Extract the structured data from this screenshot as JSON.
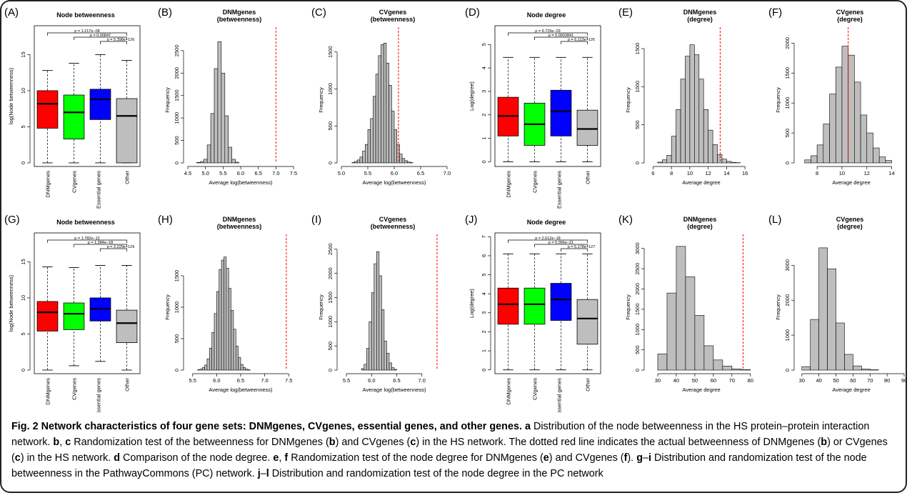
{
  "chart_data": [
    {
      "panel": "(A)",
      "type": "box",
      "title": "Node betweenness",
      "ylabel": "log(Node betweenness)",
      "categories": [
        "DNMgenes",
        "CVgenes",
        "Essential genes",
        "Other"
      ],
      "colors": [
        "#ff0000",
        "#00ff00",
        "#0000ff",
        "#bebebe"
      ],
      "boxes": [
        {
          "q1": 4.8,
          "median": 8.2,
          "q3": 10.0,
          "lo": 0,
          "hi": 12.8
        },
        {
          "q1": 3.3,
          "median": 7.0,
          "q3": 9.4,
          "lo": 0,
          "hi": 13.8
        },
        {
          "q1": 6.0,
          "median": 8.8,
          "q3": 10.2,
          "lo": 0,
          "hi": 15.0
        },
        {
          "q1": 0,
          "median": 6.5,
          "q3": 8.9,
          "lo": 0,
          "hi": 14.2
        }
      ],
      "yticks": [
        0,
        5,
        10,
        15
      ],
      "ylim": [
        -0.5,
        19
      ],
      "pvalues": [
        "p = 1.217e−08",
        "p = 0.00847",
        "p = 5.398e−126"
      ]
    },
    {
      "panel": "(B)",
      "type": "histogram",
      "title": "DNMgenes\n(betweenness)",
      "xlabel": "Average log(betweenness)",
      "ylabel": "Frequency",
      "xlim": [
        4.5,
        7.5
      ],
      "xticks": [
        4.5,
        5.0,
        5.5,
        6.0,
        6.5,
        7.0,
        7.5
      ],
      "ylim": [
        0,
        2800
      ],
      "yticks": [
        0,
        500,
        1000,
        1500,
        2000,
        2500
      ],
      "bin_start": 4.75,
      "bin_width": 0.1,
      "counts": [
        10,
        30,
        80,
        400,
        1100,
        2100,
        2700,
        2000,
        1050,
        350,
        80,
        15
      ],
      "redline": 7.0
    },
    {
      "panel": "(C)",
      "type": "histogram",
      "title": "CVgenes\n(betweenness)",
      "xlabel": "Average log(betweenness)",
      "ylabel": "Frequency",
      "xlim": [
        5.0,
        7.0
      ],
      "xticks": [
        5.0,
        5.5,
        6.0,
        6.5,
        7.0
      ],
      "ylim": [
        0,
        1700
      ],
      "yticks": [
        0,
        500,
        1000,
        1500
      ],
      "bin_start": 5.2,
      "bin_width": 0.05,
      "counts": [
        5,
        20,
        40,
        80,
        160,
        250,
        450,
        600,
        900,
        1200,
        1450,
        1600,
        1620,
        1350,
        1050,
        700,
        450,
        250,
        120,
        60,
        30,
        12,
        5
      ],
      "redline": 6.08
    },
    {
      "panel": "(D)",
      "type": "box",
      "title": "Node degree",
      "ylabel": "Log(degree)",
      "categories": [
        "DNMgenes",
        "CVgenes",
        "Essential genes",
        "Other"
      ],
      "colors": [
        "#ff0000",
        "#00ff00",
        "#0000ff",
        "#bebebe"
      ],
      "boxes": [
        {
          "q1": 1.1,
          "median": 1.95,
          "q3": 2.75,
          "lo": 0,
          "hi": 4.45
        },
        {
          "q1": 0.7,
          "median": 1.6,
          "q3": 2.5,
          "lo": 0,
          "hi": 4.45
        },
        {
          "q1": 1.1,
          "median": 2.15,
          "q3": 3.05,
          "lo": 0,
          "hi": 4.45
        },
        {
          "q1": 0.7,
          "median": 1.4,
          "q3": 2.2,
          "lo": 0,
          "hi": 4.45
        }
      ],
      "yticks": [
        0,
        1,
        2,
        3,
        4,
        5
      ],
      "ylim": [
        -0.2,
        5.8
      ],
      "pvalues": [
        "p = 9.729e−29",
        "p = 0.0003841",
        "p = 6.113e−126"
      ]
    },
    {
      "panel": "(E)",
      "type": "histogram",
      "title": "DNMgenes\n(degree)",
      "xlabel": "Average degree",
      "ylabel": "Frequency",
      "xlim": [
        5.5,
        17
      ],
      "xticks": [
        6,
        8,
        10,
        12,
        14,
        16
      ],
      "ylim": [
        0,
        1650
      ],
      "yticks": [
        0,
        500,
        1000,
        1500
      ],
      "bin_start": 6.5,
      "bin_width": 0.5,
      "counts": [
        10,
        40,
        100,
        350,
        700,
        1100,
        1400,
        1550,
        1420,
        1100,
        700,
        430,
        240,
        110,
        50,
        20,
        8,
        3
      ],
      "redline": 13.3
    },
    {
      "panel": "(F)",
      "type": "histogram",
      "title": "CVgenes\n(degree)",
      "xlabel": "Average degree",
      "ylabel": "Frequency",
      "xlim": [
        6.5,
        15
      ],
      "xticks": [
        8,
        10,
        12,
        14
      ],
      "ylim": [
        0,
        2100
      ],
      "yticks": [
        0,
        500,
        1000,
        1500,
        2000
      ],
      "bin_start": 7,
      "bin_width": 0.5,
      "counts": [
        50,
        120,
        300,
        650,
        1150,
        1600,
        1950,
        1800,
        1350,
        800,
        500,
        250,
        100,
        40
      ],
      "redline": 10.5
    },
    {
      "panel": "(G)",
      "type": "box",
      "title": "Node betweenness",
      "ylabel": "log(Node betweenness)",
      "categories": [
        "DNMgenes",
        "CVgenes",
        "Essential genes",
        "Other"
      ],
      "colors": [
        "#ff0000",
        "#00ff00",
        "#0000ff",
        "#bebebe"
      ],
      "boxes": [
        {
          "q1": 5.4,
          "median": 8.0,
          "q3": 9.5,
          "lo": 0,
          "hi": 14.3
        },
        {
          "q1": 5.6,
          "median": 7.8,
          "q3": 9.3,
          "lo": 0.6,
          "hi": 14.2
        },
        {
          "q1": 6.8,
          "median": 8.5,
          "q3": 10.0,
          "lo": 1.2,
          "hi": 14.5
        },
        {
          "q1": 3.8,
          "median": 6.5,
          "q3": 8.3,
          "lo": 0,
          "hi": 14.5
        }
      ],
      "yticks": [
        0,
        5,
        10,
        15
      ],
      "ylim": [
        -0.5,
        19
      ],
      "pvalues": [
        "p = 1.782e−12",
        "p = 1.384e−18",
        "p = 2.229e−129"
      ]
    },
    {
      "panel": "(H)",
      "type": "histogram",
      "title": "DNMgenes\n(betweenness)",
      "xlabel": "Average log(betweenness)",
      "ylabel": "Frequency",
      "xlim": [
        5.4,
        7.6
      ],
      "xticks": [
        5.5,
        6.0,
        6.5,
        7.0,
        7.5
      ],
      "ylim": [
        0,
        2000
      ],
      "yticks": [
        0,
        500,
        1000,
        1500
      ],
      "bin_start": 5.6,
      "bin_width": 0.05,
      "counts": [
        5,
        15,
        40,
        80,
        180,
        350,
        600,
        900,
        1250,
        1600,
        1750,
        1800,
        1620,
        1300,
        950,
        650,
        380,
        200,
        90,
        40,
        15,
        5
      ],
      "redline": 7.45
    },
    {
      "panel": "(I)",
      "type": "histogram",
      "title": "CVgenes\n(betweenness)",
      "xlabel": "Average log(betweenness)",
      "ylabel": "Frequency",
      "xlim": [
        5.4,
        7.5
      ],
      "xticks": [
        5.5,
        6.0,
        6.5,
        7.0
      ],
      "ylim": [
        0,
        2600
      ],
      "yticks": [
        0,
        500,
        1000,
        1500,
        2000,
        2500
      ],
      "bin_start": 5.8,
      "bin_width": 0.05,
      "counts": [
        30,
        120,
        450,
        1000,
        1600,
        2200,
        2450,
        1950,
        1250,
        600,
        350,
        150,
        50,
        15
      ],
      "redline": 7.3
    },
    {
      "panel": "(J)",
      "type": "box",
      "title": "Node degree",
      "ylabel": "Log(degree)",
      "categories": [
        "DNMgenes",
        "CVgenes",
        "Essential genes",
        "Other"
      ],
      "colors": [
        "#ff0000",
        "#00ff00",
        "#0000ff",
        "#bebebe"
      ],
      "boxes": [
        {
          "q1": 2.4,
          "median": 3.45,
          "q3": 4.3,
          "lo": 0,
          "hi": 6.1
        },
        {
          "q1": 2.4,
          "median": 3.45,
          "q3": 4.3,
          "lo": 0,
          "hi": 6.1
        },
        {
          "q1": 2.6,
          "median": 3.7,
          "q3": 4.55,
          "lo": 0,
          "hi": 6.1
        },
        {
          "q1": 1.35,
          "median": 2.7,
          "q3": 3.7,
          "lo": 0,
          "hi": 6.1
        }
      ],
      "yticks": [
        0,
        1,
        2,
        3,
        4,
        5,
        6,
        7
      ],
      "ylim": [
        -0.2,
        7.2
      ],
      "pvalues": [
        "p = 2.612e−18",
        "p = 5.066e−21",
        "p = 5.178e−127"
      ]
    },
    {
      "panel": "(K)",
      "type": "histogram",
      "title": "DNMgenes\n(degree)",
      "xlabel": "Average degree",
      "ylabel": "Frequency",
      "xlim": [
        25,
        82
      ],
      "xticks": [
        30,
        40,
        50,
        60,
        70,
        80
      ],
      "ylim": [
        0,
        3100
      ],
      "yticks": [
        0,
        500,
        1000,
        1500,
        2000,
        2500,
        3000
      ],
      "bin_start": 30,
      "bin_width": 5,
      "counts": [
        400,
        1900,
        3050,
        2300,
        1350,
        600,
        250,
        100,
        30,
        10
      ],
      "redline": 76
    },
    {
      "panel": "(L)",
      "type": "histogram",
      "title": "CVgenes\n(degree)",
      "xlabel": "Average degree",
      "ylabel": "Frequency",
      "xlim": [
        28,
        90
      ],
      "xticks": [
        30,
        40,
        50,
        60,
        70,
        80,
        90
      ],
      "ylim": [
        0,
        3600
      ],
      "yticks": [
        0,
        1000,
        2000,
        3000
      ],
      "bin_start": 30,
      "bin_width": 5,
      "counts": [
        100,
        1450,
        3500,
        2900,
        1350,
        450,
        120,
        30,
        10
      ],
      "redline": null
    }
  ],
  "caption": {
    "label": "Fig. 2 Network characteristics of four gene sets: DNMgenes, CVgenes, essential genes, and other genes.",
    "text": [
      {
        "b": "a"
      },
      {
        "t": " Distribution of the node betweenness in the HS protein–protein interaction network. "
      },
      {
        "b": "b"
      },
      {
        "t": ", "
      },
      {
        "b": "c"
      },
      {
        "t": " Randomization test of the betweenness for DNMgenes ("
      },
      {
        "b": "b"
      },
      {
        "t": ") and CVgenes ("
      },
      {
        "b": "c"
      },
      {
        "t": ") in the HS network. The dotted red line indicates the actual betweenness of DNMgenes ("
      },
      {
        "b": "b"
      },
      {
        "t": ") or CVgenes ("
      },
      {
        "b": "c"
      },
      {
        "t": ") in the HS network. "
      },
      {
        "b": "d"
      },
      {
        "t": " Comparison of the node degree. "
      },
      {
        "b": "e"
      },
      {
        "t": ", "
      },
      {
        "b": "f"
      },
      {
        "t": " Randomization test of the node degree for DNMgenes ("
      },
      {
        "b": "e"
      },
      {
        "t": ") and CVgenes ("
      },
      {
        "b": "f"
      },
      {
        "t": "). "
      },
      {
        "b": "g"
      },
      {
        "t": "–"
      },
      {
        "b": "i"
      },
      {
        "t": " Distribution and randomization test of the node betweenness in the PathwayCommons (PC) network. "
      },
      {
        "b": "j"
      },
      {
        "t": "–"
      },
      {
        "b": "l"
      },
      {
        "t": " Distribution and randomization test of the node degree in the PC network"
      }
    ]
  }
}
